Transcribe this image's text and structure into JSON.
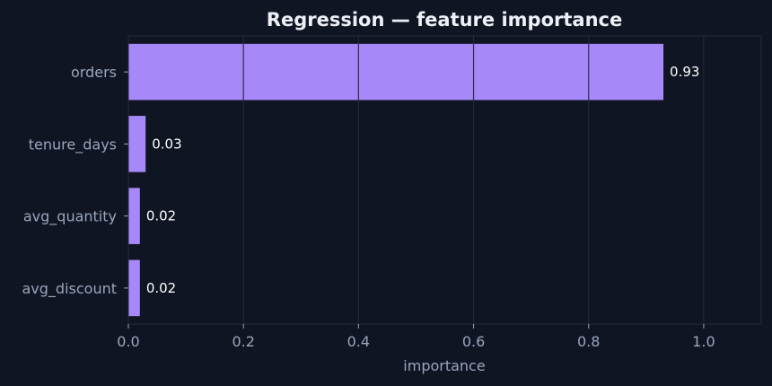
{
  "chart_data": {
    "type": "bar",
    "orientation": "horizontal",
    "title": "Regression — feature importance",
    "xlabel": "importance",
    "ylabel": "",
    "xlim": [
      0,
      1.1
    ],
    "xticks": [
      0.0,
      0.2,
      0.4,
      0.6,
      0.8,
      1.0
    ],
    "xtick_labels": [
      "0.0",
      "0.2",
      "0.4",
      "0.6",
      "0.8",
      "1.0"
    ],
    "categories": [
      "orders",
      "tenure_days",
      "avg_quantity",
      "avg_discount"
    ],
    "values": [
      0.93,
      0.03,
      0.02,
      0.02
    ],
    "value_labels": [
      "0.93",
      "0.03",
      "0.02",
      "0.02"
    ],
    "grid": "vertical",
    "colors": {
      "background": "#0f1523",
      "bar": "#a788f8",
      "grid": "#242c40",
      "text": "#9aa6bc",
      "title": "#eef0f6",
      "value_text": "#ffffff"
    }
  }
}
